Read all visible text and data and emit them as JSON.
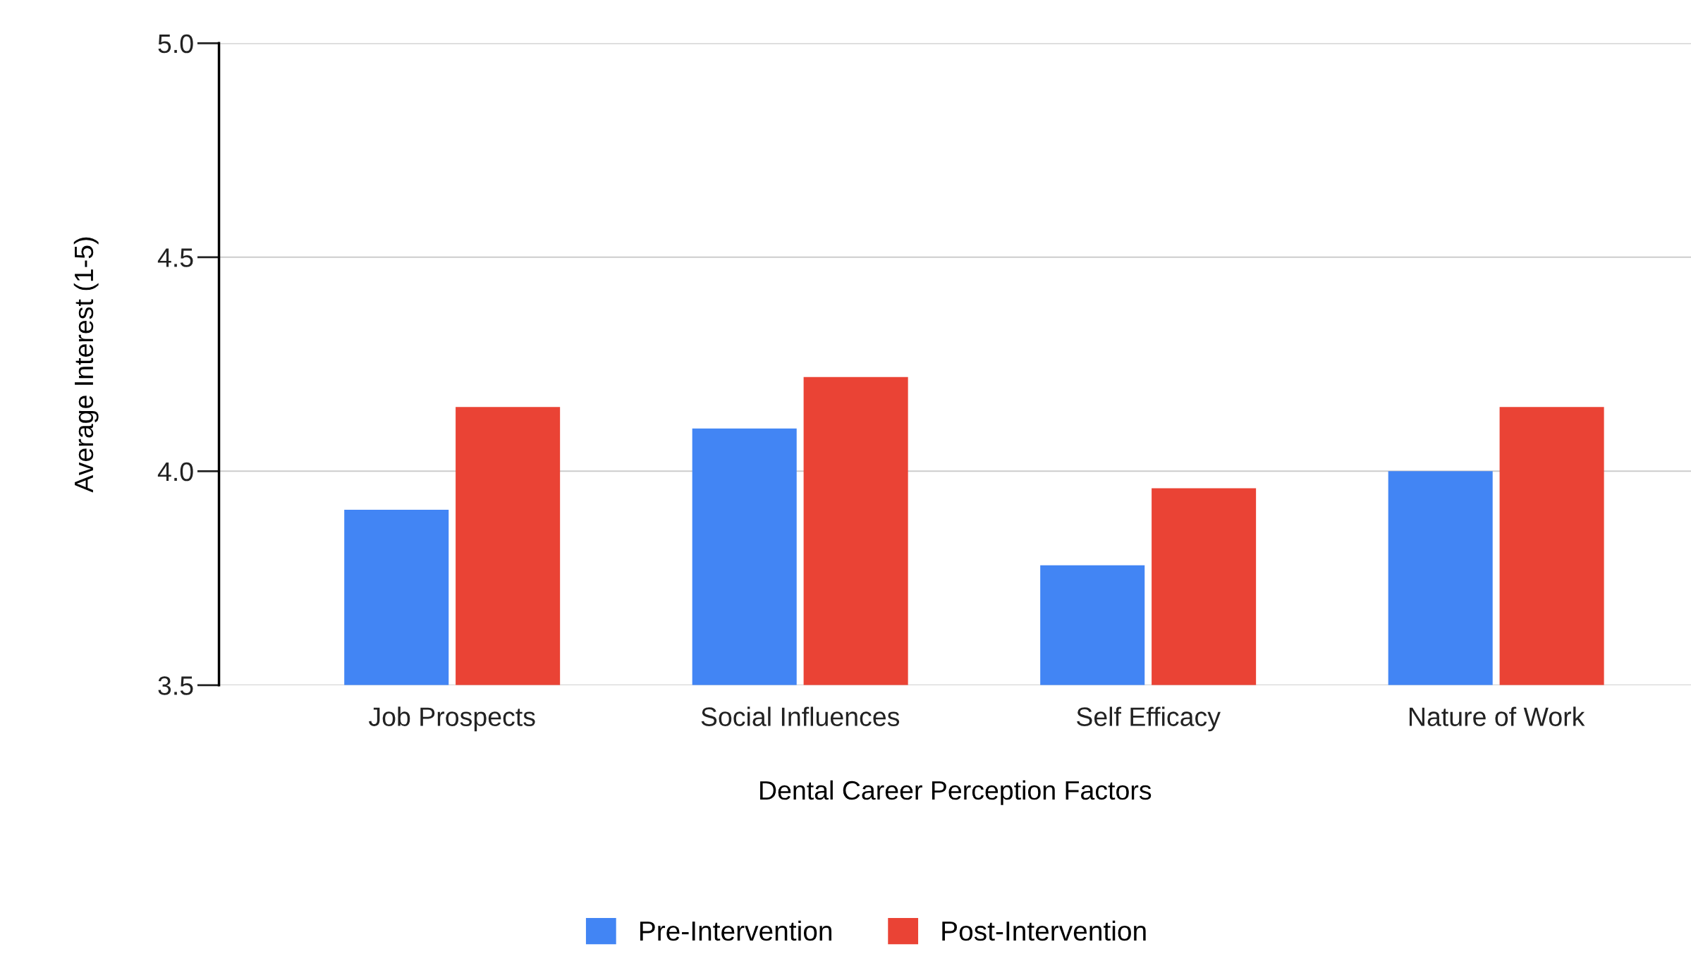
{
  "chart_data": {
    "type": "bar",
    "xlabel": "Dental Career Perception Factors",
    "ylabel": "Average Interest (1-5)",
    "categories": [
      "Job Prospects",
      "Social Influences",
      "Self Efficacy",
      "Nature of Work"
    ],
    "series": [
      {
        "name": "Pre-Intervention",
        "color": "#4285f4",
        "values": [
          3.91,
          4.1,
          3.78,
          4.0
        ]
      },
      {
        "name": "Post-Intervention",
        "color": "#ea4335",
        "values": [
          4.15,
          4.22,
          3.96,
          4.15
        ]
      }
    ],
    "ylim": [
      3.5,
      5.0
    ],
    "yticks": [
      3.5,
      {
        "value": 4,
        "label": "4.0"
      },
      4.5,
      {
        "value": 5,
        "label": "5.0"
      }
    ],
    "grid": "y",
    "legend": "bottom"
  }
}
